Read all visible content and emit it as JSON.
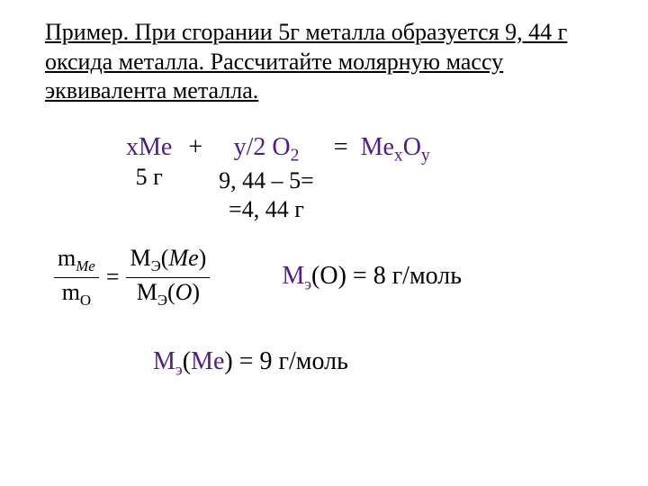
{
  "problem_text": "Пример. При сгорании 5г металла образуется 9, 44 г оксида металла. Рассчитайте молярную массу эквивалента металла.",
  "reaction": {
    "me_coeff": "x",
    "me_sym": "Me",
    "me_mass": "5 г",
    "plus": "+",
    "o_coeff": "y/2 O",
    "o_sub": "2",
    "o_mass1": "9, 44 – 5=",
    "o_mass2": "=4, 44 г",
    "eq": "=",
    "prod_me": "Me",
    "prod_x": "x",
    "prod_o": "O",
    "prod_y": "y"
  },
  "ratio": {
    "m_me": "m",
    "m_me_sub": "Me",
    "m_o": "m",
    "m_o_sub": "O",
    "eqs": "=",
    "M_me": "M",
    "e_sub": "Э",
    "me_arg": "(",
    "me_txt": "Me",
    "me_close": ")",
    "o_arg": "(",
    "o_txt": "O",
    "o_close": ")"
  },
  "result_o": {
    "M": "М",
    "e": "э",
    "arg": "(O) = 8 г/моль"
  },
  "result_me": {
    "M": "М",
    "e": "э",
    "open": "(",
    "me": "Me",
    "rest": ") = 9 г/моль"
  }
}
